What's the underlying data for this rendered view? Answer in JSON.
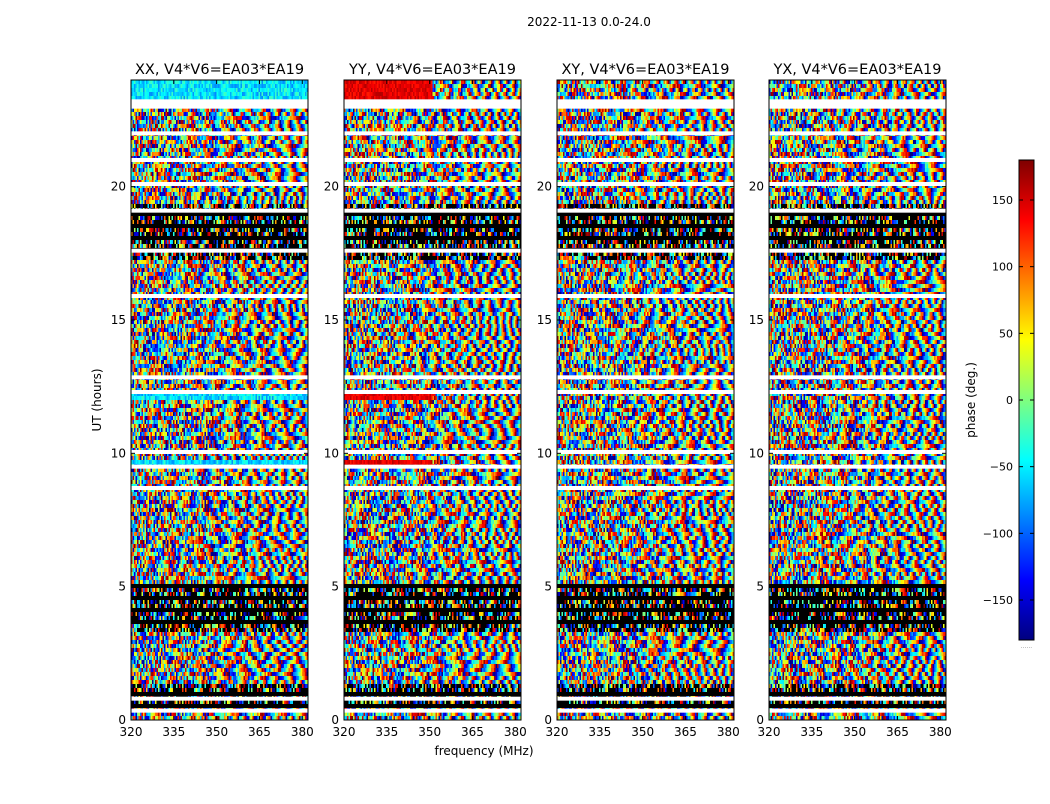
{
  "figure": {
    "suptitle": "2022-11-13 0.0-24.0"
  },
  "chart_data": {
    "type": "heatmap",
    "title": "2022-11-13 0.0-24.0",
    "xlabel": "frequency (MHz)",
    "ylabel": "UT (hours)",
    "xlim": [
      320,
      382
    ],
    "ylim": [
      0,
      24
    ],
    "x_ticks": [
      320,
      335,
      350,
      365,
      380
    ],
    "y_ticks": [
      0,
      5,
      10,
      15,
      20
    ],
    "panels": [
      {
        "title": "XX, V4*V6=EA03*EA19",
        "polarization": "XX",
        "baseline": "V4*V6=EA03*EA19"
      },
      {
        "title": "YY, V4*V6=EA03*EA19",
        "polarization": "YY",
        "baseline": "V4*V6=EA03*EA19"
      },
      {
        "title": "XY, V4*V6=EA03*EA19",
        "polarization": "XY",
        "baseline": "V4*V6=EA03*EA19"
      },
      {
        "title": "YX, V4*V6=EA03*EA19",
        "polarization": "YX",
        "baseline": "V4*V6=EA03*EA19"
      }
    ],
    "colorbar": {
      "label": "phase (deg.)",
      "range": [
        -180,
        180
      ],
      "ticks": [
        -150,
        -100,
        -50,
        0,
        50,
        100,
        150
      ],
      "tick_labels": [
        "−150",
        "−100",
        "−50",
        "0",
        "50",
        "100",
        "150"
      ],
      "colormap": "jet",
      "colormap_stops": [
        "#00007f",
        "#0000ff",
        "#007fff",
        "#00ffff",
        "#7fff7f",
        "#ffff00",
        "#ff7f00",
        "#ff0000",
        "#7f0000"
      ],
      "footer_text": "......"
    },
    "white_gap_hours": [
      0.35,
      0.8,
      8.7,
      9.5,
      10.05,
      12.3,
      12.85,
      15.9,
      17.6,
      19.1,
      20.1,
      21.0,
      22.0,
      23.0,
      23.1,
      23.2
    ],
    "black_band_ranges_hours": [
      [
        0.5,
        1.3
      ],
      [
        3.3,
        5.1
      ],
      [
        17.3,
        19.4
      ]
    ]
  }
}
